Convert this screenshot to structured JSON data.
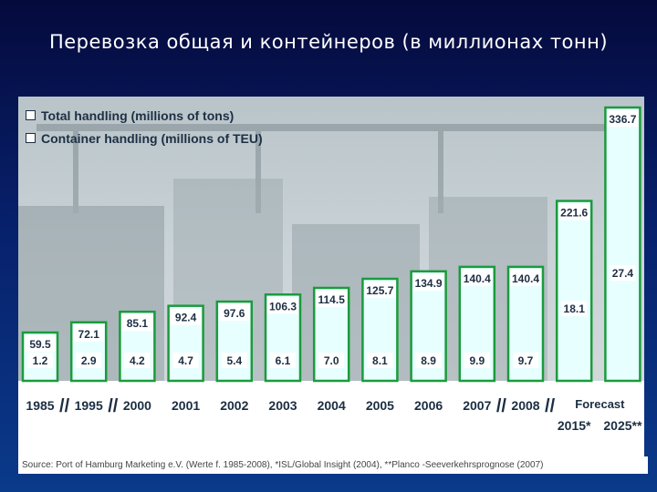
{
  "slide": {
    "title": "Перевозка общая и контейнеров (в миллионах тонн)"
  },
  "legend": {
    "total_label": "Total handling (millions of tons)",
    "container_label": "Container handling (millions of TEU)"
  },
  "axis": {
    "forecast_label": "Forecast",
    "break_symbol": "//"
  },
  "source": "Source: Port of Hamburg Marketing e.V. (Werte f. 1985-2008), *ISL/Global Insight (2004), **Planco -Seeverkehrsprognose (2007)",
  "colors": {
    "bar_fill": "#e8ffff",
    "bar_stroke": "#1a9b3c",
    "label_fill": "#ffffff",
    "text_dark": "#1d2f44",
    "forecast_text": "#ffffff"
  },
  "chart_data": {
    "type": "bar",
    "categories": [
      "1985",
      "1995",
      "2000",
      "2001",
      "2002",
      "2003",
      "2004",
      "2005",
      "2006",
      "2007",
      "2008",
      "2015*",
      "2025**"
    ],
    "series": [
      {
        "name": "Total handling (millions of tons)",
        "values": [
          59.5,
          72.1,
          85.1,
          92.4,
          97.6,
          106.3,
          114.5,
          125.7,
          134.9,
          140.4,
          140.4,
          221.6,
          336.7
        ]
      },
      {
        "name": "Container handling (millions of TEU)",
        "values": [
          1.2,
          2.9,
          4.2,
          4.7,
          5.4,
          6.1,
          7.0,
          8.1,
          8.9,
          9.9,
          9.7,
          18.1,
          27.4
        ]
      }
    ],
    "value_labels_total": [
      "59.5",
      "72.1",
      "85.1",
      "92.4",
      "97.6",
      "106.3",
      "114.5",
      "125.7",
      "134.9",
      "140.4",
      "140.4",
      "221.6",
      "336.7"
    ],
    "value_labels_container": [
      "1.2",
      "2.9",
      "4.2",
      "4.7",
      "5.4",
      "6.1",
      "7.0",
      "8.1",
      "8.9",
      "9.9",
      "9.7",
      "18.1",
      "27.4"
    ],
    "forecast_categories": [
      "2015*",
      "2025**"
    ],
    "axis_breaks_after": [
      "1985",
      "1995",
      "2007",
      "2008"
    ],
    "title": "",
    "xlabel": "",
    "ylabel": "",
    "grid": false
  }
}
